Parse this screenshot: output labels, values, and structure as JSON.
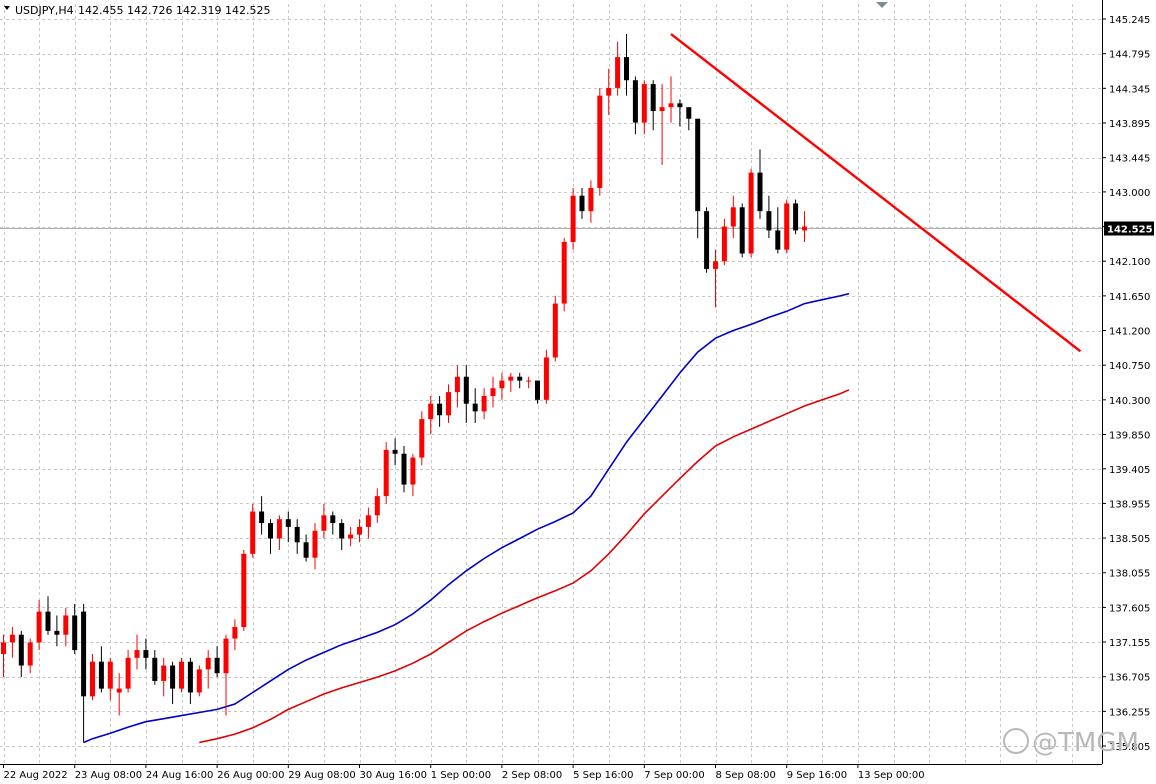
{
  "header": {
    "symbol": "USDJPY,H4",
    "ohlc": "142.455 142.726 142.319 142.525"
  },
  "watermark": "@TMGM",
  "colors": {
    "background": "#ffffff",
    "grid": "#c8c8c8",
    "bull_candle": "#ff0000",
    "bear_candle": "#000000",
    "ma_fast": "#0000cc",
    "ma_slow": "#e00000",
    "trendline": "#ff0000",
    "current_price_label_bg": "#000000"
  },
  "chart_data": {
    "type": "candlestick",
    "symbol": "USDJPY",
    "timeframe": "H4",
    "ylim": [
      135.95,
      145.4
    ],
    "y_ticks": [
      "145.245",
      "144.795",
      "144.345",
      "143.895",
      "143.445",
      "143.000",
      "142.550",
      "142.100",
      "141.650",
      "141.200",
      "140.750",
      "140.300",
      "139.850",
      "139.405",
      "138.955",
      "138.505",
      "138.055",
      "137.605",
      "137.155",
      "136.705",
      "136.255",
      "135.805"
    ],
    "x_labels": [
      {
        "label": "22 Aug 2022",
        "bar": 0
      },
      {
        "label": "23 Aug 08:00",
        "bar": 8
      },
      {
        "label": "24 Aug 16:00",
        "bar": 16
      },
      {
        "label": "26 Aug 00:00",
        "bar": 24
      },
      {
        "label": "29 Aug 08:00",
        "bar": 32
      },
      {
        "label": "30 Aug 16:00",
        "bar": 40
      },
      {
        "label": "1 Sep 00:00",
        "bar": 48
      },
      {
        "label": "2 Sep 08:00",
        "bar": 56
      },
      {
        "label": "5 Sep 16:00",
        "bar": 64
      },
      {
        "label": "7 Sep 00:00",
        "bar": 72
      },
      {
        "label": "8 Sep 08:00",
        "bar": 80
      },
      {
        "label": "9 Sep 16:00",
        "bar": 88
      },
      {
        "label": "13 Sep 00:00",
        "bar": 96
      }
    ],
    "current_price": 142.525,
    "candles": [
      [
        137.0,
        137.25,
        136.7,
        137.15
      ],
      [
        137.15,
        137.35,
        136.95,
        137.25
      ],
      [
        137.25,
        137.3,
        136.7,
        136.85
      ],
      [
        136.85,
        137.2,
        136.75,
        137.15
      ],
      [
        137.15,
        137.7,
        137.05,
        137.55
      ],
      [
        137.55,
        137.75,
        137.25,
        137.3
      ],
      [
        137.3,
        137.5,
        137.1,
        137.25
      ],
      [
        137.25,
        137.6,
        137.1,
        137.5
      ],
      [
        137.5,
        137.65,
        137.0,
        137.05
      ],
      [
        137.55,
        137.65,
        135.85,
        136.45
      ],
      [
        136.45,
        137.0,
        136.4,
        136.9
      ],
      [
        136.9,
        137.1,
        136.5,
        136.55
      ],
      [
        136.55,
        136.95,
        136.4,
        136.9
      ],
      [
        136.5,
        136.75,
        136.2,
        136.55
      ],
      [
        136.55,
        137.05,
        136.5,
        136.95
      ],
      [
        136.95,
        137.25,
        136.8,
        137.05
      ],
      [
        137.05,
        137.2,
        136.8,
        136.95
      ],
      [
        136.95,
        137.05,
        136.6,
        136.65
      ],
      [
        136.65,
        136.95,
        136.45,
        136.85
      ],
      [
        136.85,
        136.9,
        136.35,
        136.55
      ],
      [
        136.55,
        136.95,
        136.5,
        136.9
      ],
      [
        136.9,
        136.95,
        136.35,
        136.5
      ],
      [
        136.5,
        136.85,
        136.45,
        136.8
      ],
      [
        136.8,
        137.05,
        136.55,
        136.95
      ],
      [
        136.95,
        137.1,
        136.7,
        136.75
      ],
      [
        136.75,
        137.25,
        136.2,
        137.2
      ],
      [
        137.2,
        137.45,
        137.05,
        137.35
      ],
      [
        137.35,
        138.35,
        137.3,
        138.3
      ],
      [
        138.3,
        138.95,
        138.25,
        138.85
      ],
      [
        138.85,
        139.05,
        138.55,
        138.7
      ],
      [
        138.7,
        138.75,
        138.3,
        138.5
      ],
      [
        138.5,
        138.8,
        138.35,
        138.75
      ],
      [
        138.75,
        138.85,
        138.45,
        138.65
      ],
      [
        138.65,
        138.75,
        138.3,
        138.45
      ],
      [
        138.45,
        138.55,
        138.2,
        138.25
      ],
      [
        138.25,
        138.7,
        138.1,
        138.6
      ],
      [
        138.6,
        138.95,
        138.5,
        138.8
      ],
      [
        138.8,
        138.85,
        138.55,
        138.7
      ],
      [
        138.7,
        138.75,
        138.35,
        138.5
      ],
      [
        138.5,
        138.65,
        138.4,
        138.55
      ],
      [
        138.55,
        138.75,
        138.45,
        138.65
      ],
      [
        138.65,
        138.9,
        138.5,
        138.8
      ],
      [
        138.8,
        139.15,
        138.7,
        139.05
      ],
      [
        139.05,
        139.75,
        138.95,
        139.65
      ],
      [
        139.65,
        139.8,
        139.45,
        139.6
      ],
      [
        139.6,
        139.7,
        139.1,
        139.2
      ],
      [
        139.2,
        139.6,
        139.05,
        139.55
      ],
      [
        139.55,
        140.15,
        139.45,
        140.05
      ],
      [
        140.05,
        140.35,
        139.85,
        140.25
      ],
      [
        140.25,
        140.35,
        139.95,
        140.1
      ],
      [
        140.1,
        140.5,
        140.0,
        140.4
      ],
      [
        140.4,
        140.75,
        140.2,
        140.6
      ],
      [
        140.6,
        140.75,
        140.0,
        140.25
      ],
      [
        140.25,
        140.45,
        140.0,
        140.15
      ],
      [
        140.15,
        140.45,
        140.05,
        140.35
      ],
      [
        140.35,
        140.6,
        140.2,
        140.45
      ],
      [
        140.45,
        140.65,
        140.3,
        140.55
      ],
      [
        140.55,
        140.65,
        140.4,
        140.6
      ],
      [
        140.6,
        140.65,
        140.45,
        140.55
      ],
      [
        140.55,
        140.6,
        140.45,
        140.55
      ],
      [
        140.55,
        140.55,
        140.25,
        140.3
      ],
      [
        140.3,
        140.95,
        140.25,
        140.85
      ],
      [
        140.85,
        141.65,
        140.8,
        141.55
      ],
      [
        141.55,
        142.4,
        141.45,
        142.35
      ],
      [
        142.35,
        143.05,
        142.25,
        142.95
      ],
      [
        142.95,
        143.05,
        142.65,
        142.75
      ],
      [
        142.75,
        143.15,
        142.6,
        143.05
      ],
      [
        143.05,
        144.35,
        142.95,
        144.25
      ],
      [
        144.25,
        144.6,
        144.0,
        144.35
      ],
      [
        144.35,
        144.95,
        144.25,
        144.75
      ],
      [
        144.75,
        145.05,
        144.25,
        144.45
      ],
      [
        144.45,
        144.5,
        143.75,
        143.9
      ],
      [
        143.9,
        144.45,
        143.75,
        144.4
      ],
      [
        144.4,
        144.45,
        143.8,
        144.05
      ],
      [
        144.05,
        144.4,
        143.35,
        144.1
      ],
      [
        144.1,
        144.5,
        143.9,
        144.15
      ],
      [
        144.15,
        144.2,
        143.85,
        144.1
      ],
      [
        144.1,
        144.1,
        143.8,
        143.95
      ],
      [
        143.95,
        143.95,
        142.4,
        142.75
      ],
      [
        142.75,
        142.8,
        141.95,
        142.0
      ],
      [
        142.0,
        142.25,
        141.5,
        142.1
      ],
      [
        142.1,
        142.65,
        142.05,
        142.55
      ],
      [
        142.55,
        142.95,
        142.4,
        142.8
      ],
      [
        142.8,
        142.85,
        142.15,
        142.2
      ],
      [
        142.2,
        143.3,
        142.15,
        143.25
      ],
      [
        143.25,
        143.55,
        142.65,
        142.75
      ],
      [
        142.75,
        142.95,
        142.4,
        142.5
      ],
      [
        142.5,
        142.8,
        142.2,
        142.25
      ],
      [
        142.25,
        142.9,
        142.2,
        142.85
      ],
      [
        142.85,
        142.9,
        142.45,
        142.5
      ],
      [
        142.5,
        142.75,
        142.35,
        142.55
      ]
    ],
    "ma_fast": [
      [
        9,
        135.85
      ],
      [
        10,
        135.9
      ],
      [
        12,
        135.97
      ],
      [
        14,
        136.05
      ],
      [
        16,
        136.12
      ],
      [
        18,
        136.16
      ],
      [
        20,
        136.2
      ],
      [
        22,
        136.24
      ],
      [
        24,
        136.28
      ],
      [
        26,
        136.35
      ],
      [
        28,
        136.5
      ],
      [
        30,
        136.65
      ],
      [
        32,
        136.8
      ],
      [
        34,
        136.92
      ],
      [
        36,
        137.02
      ],
      [
        38,
        137.12
      ],
      [
        40,
        137.2
      ],
      [
        42,
        137.28
      ],
      [
        44,
        137.38
      ],
      [
        46,
        137.52
      ],
      [
        48,
        137.7
      ],
      [
        50,
        137.9
      ],
      [
        52,
        138.08
      ],
      [
        54,
        138.24
      ],
      [
        56,
        138.38
      ],
      [
        58,
        138.5
      ],
      [
        60,
        138.62
      ],
      [
        62,
        138.72
      ],
      [
        64,
        138.83
      ],
      [
        66,
        139.05
      ],
      [
        68,
        139.4
      ],
      [
        70,
        139.75
      ],
      [
        72,
        140.05
      ],
      [
        74,
        140.35
      ],
      [
        76,
        140.65
      ],
      [
        78,
        140.92
      ],
      [
        80,
        141.1
      ],
      [
        82,
        141.2
      ],
      [
        84,
        141.28
      ],
      [
        86,
        141.37
      ],
      [
        88,
        141.45
      ],
      [
        90,
        141.55
      ],
      [
        92,
        141.6
      ],
      [
        94,
        141.65
      ],
      [
        95,
        141.68
      ]
    ],
    "ma_slow": [
      [
        22,
        135.85
      ],
      [
        24,
        135.9
      ],
      [
        26,
        135.96
      ],
      [
        28,
        136.04
      ],
      [
        30,
        136.15
      ],
      [
        32,
        136.28
      ],
      [
        34,
        136.38
      ],
      [
        36,
        136.48
      ],
      [
        38,
        136.56
      ],
      [
        40,
        136.63
      ],
      [
        42,
        136.7
      ],
      [
        44,
        136.78
      ],
      [
        46,
        136.88
      ],
      [
        48,
        137.0
      ],
      [
        50,
        137.15
      ],
      [
        52,
        137.3
      ],
      [
        54,
        137.42
      ],
      [
        56,
        137.53
      ],
      [
        58,
        137.63
      ],
      [
        60,
        137.73
      ],
      [
        62,
        137.82
      ],
      [
        64,
        137.92
      ],
      [
        66,
        138.08
      ],
      [
        68,
        138.3
      ],
      [
        70,
        138.55
      ],
      [
        72,
        138.82
      ],
      [
        74,
        139.05
      ],
      [
        76,
        139.28
      ],
      [
        78,
        139.5
      ],
      [
        80,
        139.7
      ],
      [
        82,
        139.82
      ],
      [
        84,
        139.92
      ],
      [
        86,
        140.02
      ],
      [
        88,
        140.12
      ],
      [
        90,
        140.22
      ],
      [
        92,
        140.3
      ],
      [
        94,
        140.38
      ],
      [
        95,
        140.43
      ]
    ],
    "trendline": {
      "from": [
        75,
        145.05
      ],
      "to": [
        121,
        140.93
      ]
    }
  }
}
